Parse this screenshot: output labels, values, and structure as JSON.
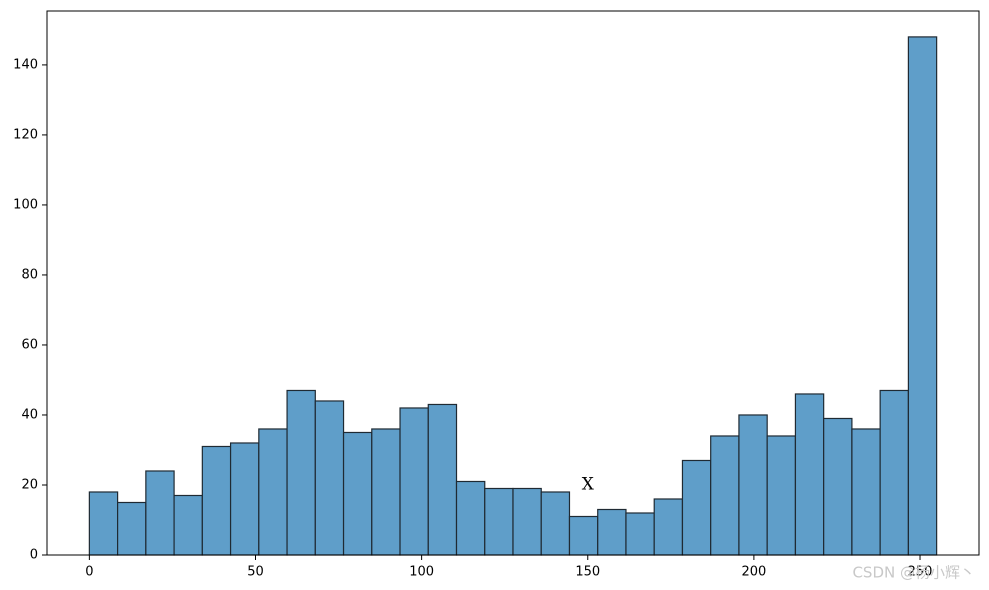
{
  "chart_data": {
    "type": "histogram",
    "bins": [
      0,
      8.5,
      17,
      25.5,
      34,
      42.5,
      51,
      59.5,
      68,
      76.5,
      85,
      93.5,
      102,
      110.5,
      119,
      127.5,
      136,
      144.5,
      153,
      161.5,
      170,
      178.5,
      187,
      195.5,
      204,
      212.5,
      221,
      229.5,
      238,
      246.5,
      255
    ],
    "values": [
      18,
      15,
      24,
      17,
      31,
      32,
      36,
      47,
      44,
      35,
      36,
      42,
      43,
      21,
      19,
      19,
      18,
      11,
      13,
      12,
      16,
      27,
      34,
      40,
      34,
      46,
      39,
      36,
      47,
      148
    ],
    "color": "#5f9ec9",
    "edgecolor": "#1f2a33",
    "xlim": [
      -12.75,
      267.75
    ],
    "xticks": [
      0,
      50,
      100,
      150,
      200,
      250
    ],
    "ylim": [
      0,
      155.4
    ],
    "yticks": [
      0,
      20,
      40,
      60,
      80,
      100,
      120,
      140
    ],
    "annotation": {
      "text": "X",
      "x": 150,
      "y": 20
    },
    "watermark": "CSDN @杨小辉丶"
  }
}
